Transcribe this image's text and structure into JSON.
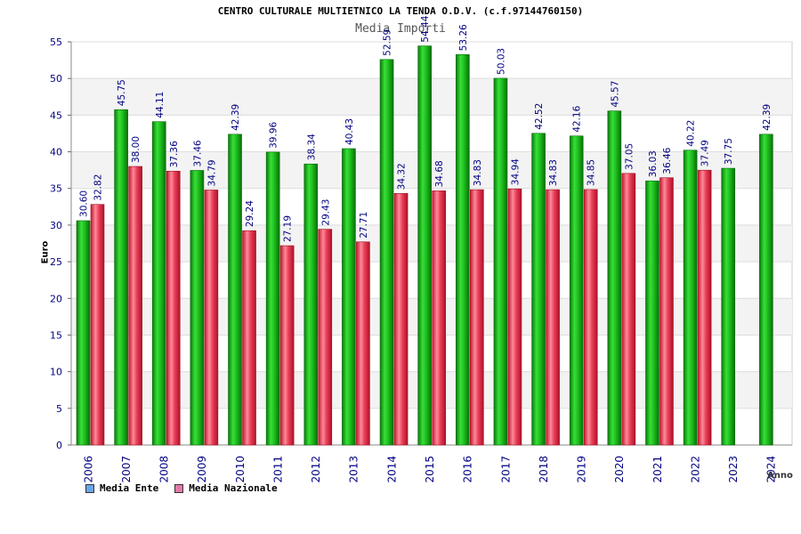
{
  "chart_data": {
    "type": "bar",
    "title": "CENTRO CULTURALE MULTIETNICO LA TENDA O.D.V. (c.f.97144760150)",
    "subtitle": "Media Importi",
    "ylabel": "Euro",
    "xlabel": "Anno",
    "ylim": [
      0,
      55
    ],
    "yticks": [
      0,
      5,
      10,
      15,
      20,
      25,
      30,
      35,
      40,
      45,
      50,
      55
    ],
    "grid": true,
    "legend_position": "bottom-left",
    "categories": [
      "2006",
      "2007",
      "2008",
      "2009",
      "2010",
      "2011",
      "2012",
      "2013",
      "2014",
      "2015",
      "2016",
      "2017",
      "2018",
      "2019",
      "2020",
      "2021",
      "2022",
      "2023",
      "2024"
    ],
    "series": [
      {
        "name": "Media Ente",
        "color": "#1fbf1f",
        "values": [
          30.6,
          45.75,
          44.11,
          37.46,
          42.39,
          39.96,
          38.34,
          40.43,
          52.59,
          54.44,
          53.26,
          50.03,
          42.52,
          42.16,
          45.57,
          36.03,
          40.22,
          37.75,
          42.39
        ],
        "labels": [
          "30.60",
          "45.75",
          "44.11",
          "37.46",
          "42.39",
          "39.96",
          "38.34",
          "40.43",
          "52.59",
          "54.44",
          "53.26",
          "50.03",
          "42.52",
          "42.16",
          "45.57",
          "36.03",
          "40.22",
          "37.75",
          "42.39"
        ]
      },
      {
        "name": "Media Nazionale",
        "color": "#e8405a",
        "values": [
          32.82,
          38.0,
          37.36,
          34.79,
          29.24,
          27.19,
          29.43,
          27.71,
          34.32,
          34.68,
          34.83,
          34.94,
          34.83,
          34.85,
          37.05,
          36.46,
          37.49,
          null,
          null
        ],
        "labels": [
          "32.82",
          "38.00",
          "37.36",
          "34.79",
          "29.24",
          "27.19",
          "29.43",
          "27.71",
          "34.32",
          "34.68",
          "34.83",
          "34.94",
          "34.83",
          "34.85",
          "37.05",
          "36.46",
          "37.49",
          "",
          ""
        ]
      }
    ],
    "legend": [
      {
        "label": "Media Ente",
        "swatch_color": "#6aa6e8"
      },
      {
        "label": "Media Nazionale",
        "swatch_color": "#e07aa8"
      }
    ]
  }
}
